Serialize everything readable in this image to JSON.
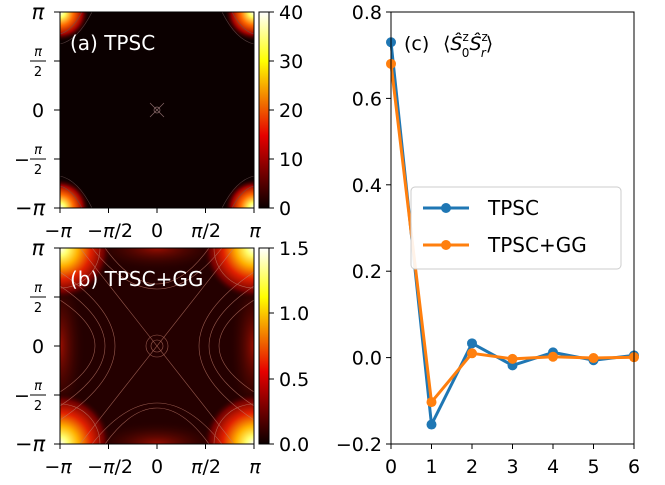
{
  "chart_data": [
    {
      "type": "heatmap",
      "panel_label": "(a) TPSC",
      "x_tick_labels": [
        "−π",
        "−π/2",
        "0",
        "π/2",
        "π"
      ],
      "y_tick_labels": [
        "π",
        "π/2",
        "0",
        "−π/2",
        "−π"
      ],
      "xlim": [
        -3.14159,
        3.14159
      ],
      "ylim": [
        -3.14159,
        3.14159
      ],
      "colorbar": {
        "range": [
          0,
          40
        ],
        "ticks": [
          "0",
          "10",
          "20",
          "30",
          "40"
        ]
      },
      "colormap": "hot",
      "features": "sharp peaks at the (±π, ±π) corners, faint feature at origin"
    },
    {
      "type": "heatmap",
      "panel_label": "(b) TPSC+GG",
      "x_tick_labels": [
        "−π",
        "−π/2",
        "0",
        "π/2",
        "π"
      ],
      "y_tick_labels": [
        "π",
        "π/2",
        "0",
        "−π/2",
        "−π"
      ],
      "xlim": [
        -3.14159,
        3.14159
      ],
      "ylim": [
        -3.14159,
        3.14159
      ],
      "colorbar": {
        "range": [
          0,
          1.5
        ],
        "ticks": [
          "0.0",
          "0.5",
          "1.0",
          "1.5"
        ]
      },
      "colormap": "hot",
      "features": "broad maxima at the (±π, ±π) corners, contour lines forming an X pattern"
    },
    {
      "type": "line",
      "panel_label": "(c)",
      "x": [
        0,
        1,
        2,
        3,
        4,
        5,
        6
      ],
      "xlim": [
        0,
        6
      ],
      "ylim": [
        -0.2,
        0.8
      ],
      "x_ticks": [
        0,
        1,
        2,
        3,
        4,
        5,
        6
      ],
      "y_ticks": [
        -0.2,
        0.0,
        0.2,
        0.4,
        0.6,
        0.8
      ],
      "legend_position": "center-right",
      "grid": false,
      "series": [
        {
          "name": "TPSC",
          "color": "#1f77b4",
          "values": [
            0.73,
            -0.155,
            0.033,
            -0.018,
            0.012,
            -0.006,
            0.005
          ]
        },
        {
          "name": "TPSC+GG",
          "color": "#ff7f0e",
          "values": [
            0.68,
            -0.103,
            0.01,
            -0.003,
            0.002,
            -0.001,
            0.001
          ]
        }
      ]
    }
  ]
}
